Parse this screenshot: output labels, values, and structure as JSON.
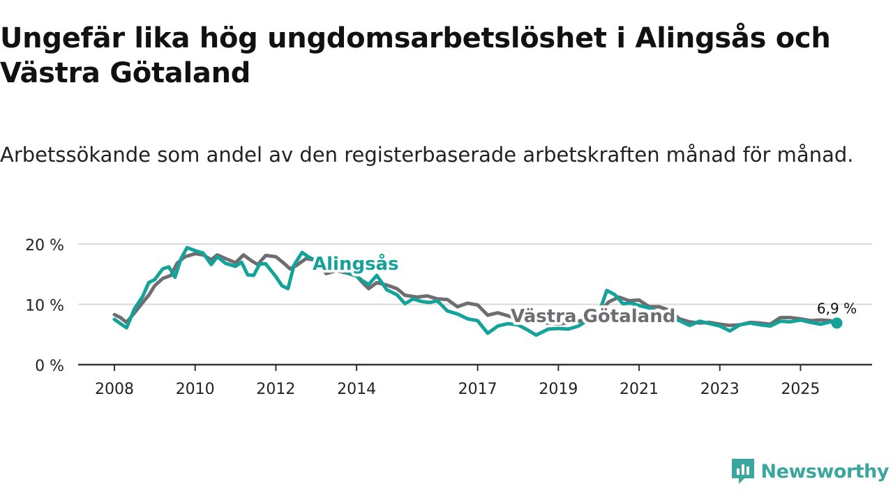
{
  "title": "Ungefär lika hög ungdomsarbetslöshet i Alingsås och Västra Götaland",
  "subtitle": "Arbetssökande som andel av den registerbaserade arbetskraften månad för månad.",
  "brand": {
    "name": "Newsworthy"
  },
  "colors": {
    "alingsas": "#14a39a",
    "vastra": "#6e6e72",
    "grid": "#d9d9d9",
    "axis": "#333333",
    "text": "#222222"
  },
  "chart_data": {
    "type": "line",
    "title": "Ungefär lika hög ungdomsarbetslöshet i Alingsås och Västra Götaland",
    "xlabel": "",
    "ylabel": "",
    "ylim": [
      0,
      20
    ],
    "xlim": [
      2008,
      2026.3
    ],
    "grid": true,
    "y_ticks": [
      {
        "value": 0,
        "label": "0 %"
      },
      {
        "value": 10,
        "label": "10 %"
      },
      {
        "value": 20,
        "label": "20 %"
      }
    ],
    "x_ticks": [
      {
        "value": 2008,
        "label": "2008"
      },
      {
        "value": 2010,
        "label": "2010"
      },
      {
        "value": 2012,
        "label": "2012"
      },
      {
        "value": 2014,
        "label": "2014"
      },
      {
        "value": 2017,
        "label": "2017"
      },
      {
        "value": 2019,
        "label": "2019"
      },
      {
        "value": 2021,
        "label": "2021"
      },
      {
        "value": 2023,
        "label": "2023"
      },
      {
        "value": 2025,
        "label": "2025"
      }
    ],
    "series": [
      {
        "name": "Västra Götaland",
        "label": "Västra Götaland",
        "color": "#6e6e72",
        "points": [
          [
            2008.0,
            8.3
          ],
          [
            2008.15,
            7.8
          ],
          [
            2008.3,
            7.0
          ],
          [
            2008.5,
            8.6
          ],
          [
            2008.7,
            10.3
          ],
          [
            2008.85,
            11.5
          ],
          [
            2009.0,
            13.1
          ],
          [
            2009.2,
            14.3
          ],
          [
            2009.4,
            14.8
          ],
          [
            2009.55,
            16.8
          ],
          [
            2009.75,
            17.9
          ],
          [
            2010.0,
            18.4
          ],
          [
            2010.2,
            18.2
          ],
          [
            2010.4,
            17.4
          ],
          [
            2010.55,
            18.2
          ],
          [
            2010.75,
            17.6
          ],
          [
            2011.0,
            16.9
          ],
          [
            2011.2,
            18.2
          ],
          [
            2011.4,
            17.2
          ],
          [
            2011.55,
            16.6
          ],
          [
            2011.75,
            18.1
          ],
          [
            2012.0,
            17.9
          ],
          [
            2012.2,
            16.8
          ],
          [
            2012.35,
            15.9
          ],
          [
            2012.5,
            16.4
          ],
          [
            2012.75,
            17.6
          ],
          [
            2013.0,
            17.3
          ],
          [
            2013.25,
            15.1
          ],
          [
            2013.5,
            15.6
          ],
          [
            2013.75,
            15.2
          ],
          [
            2014.0,
            14.7
          ],
          [
            2014.15,
            13.6
          ],
          [
            2014.3,
            12.6
          ],
          [
            2014.5,
            13.6
          ],
          [
            2014.75,
            13.2
          ],
          [
            2015.0,
            12.6
          ],
          [
            2015.2,
            11.5
          ],
          [
            2015.5,
            11.2
          ],
          [
            2015.75,
            11.4
          ],
          [
            2016.0,
            10.9
          ],
          [
            2016.25,
            10.8
          ],
          [
            2016.5,
            9.6
          ],
          [
            2016.75,
            10.2
          ],
          [
            2017.0,
            9.9
          ],
          [
            2017.25,
            8.2
          ],
          [
            2017.5,
            8.6
          ],
          [
            2017.75,
            8.1
          ],
          [
            2018.0,
            7.6
          ],
          [
            2018.25,
            7.2
          ],
          [
            2018.5,
            7.0
          ],
          [
            2018.75,
            6.9
          ],
          [
            2019.0,
            6.8
          ],
          [
            2019.25,
            6.9
          ],
          [
            2019.5,
            7.2
          ],
          [
            2019.75,
            7.6
          ],
          [
            2020.0,
            8.6
          ],
          [
            2020.25,
            10.4
          ],
          [
            2020.5,
            11.2
          ],
          [
            2020.75,
            10.6
          ],
          [
            2021.0,
            10.7
          ],
          [
            2021.25,
            9.6
          ],
          [
            2021.5,
            9.6
          ],
          [
            2021.75,
            9.0
          ],
          [
            2022.0,
            7.6
          ],
          [
            2022.25,
            7.1
          ],
          [
            2022.5,
            6.9
          ],
          [
            2022.75,
            7.0
          ],
          [
            2023.0,
            6.7
          ],
          [
            2023.25,
            6.5
          ],
          [
            2023.5,
            6.6
          ],
          [
            2023.75,
            7.0
          ],
          [
            2024.0,
            6.9
          ],
          [
            2024.25,
            6.7
          ],
          [
            2024.5,
            7.8
          ],
          [
            2024.75,
            7.8
          ],
          [
            2025.0,
            7.6
          ],
          [
            2025.25,
            7.3
          ],
          [
            2025.5,
            7.4
          ],
          [
            2025.75,
            7.3
          ]
        ]
      },
      {
        "name": "Alingsås",
        "label": "Alingsås",
        "color": "#14a39a",
        "end_label": "6,9 %",
        "end_value": 6.9,
        "points": [
          [
            2008.0,
            7.5
          ],
          [
            2008.15,
            6.8
          ],
          [
            2008.3,
            6.1
          ],
          [
            2008.5,
            9.3
          ],
          [
            2008.7,
            11.3
          ],
          [
            2008.85,
            13.6
          ],
          [
            2009.0,
            14.1
          ],
          [
            2009.2,
            15.9
          ],
          [
            2009.35,
            16.2
          ],
          [
            2009.5,
            14.5
          ],
          [
            2009.65,
            17.6
          ],
          [
            2009.8,
            19.4
          ],
          [
            2010.0,
            18.9
          ],
          [
            2010.2,
            18.5
          ],
          [
            2010.4,
            16.6
          ],
          [
            2010.55,
            17.9
          ],
          [
            2010.75,
            16.8
          ],
          [
            2011.0,
            16.3
          ],
          [
            2011.15,
            17.0
          ],
          [
            2011.3,
            14.9
          ],
          [
            2011.45,
            14.8
          ],
          [
            2011.6,
            16.7
          ],
          [
            2011.75,
            16.7
          ],
          [
            2012.0,
            14.6
          ],
          [
            2012.15,
            13.1
          ],
          [
            2012.3,
            12.6
          ],
          [
            2012.45,
            16.5
          ],
          [
            2012.65,
            18.6
          ],
          [
            2012.8,
            17.9
          ],
          [
            2013.0,
            17.2
          ],
          [
            2013.25,
            15.8
          ],
          [
            2013.5,
            16.6
          ],
          [
            2013.75,
            15.3
          ],
          [
            2014.0,
            14.7
          ],
          [
            2014.15,
            13.9
          ],
          [
            2014.3,
            13.3
          ],
          [
            2014.5,
            14.8
          ],
          [
            2014.75,
            12.4
          ],
          [
            2015.0,
            11.6
          ],
          [
            2015.2,
            10.1
          ],
          [
            2015.4,
            10.9
          ],
          [
            2015.6,
            10.5
          ],
          [
            2015.8,
            10.3
          ],
          [
            2016.0,
            10.6
          ],
          [
            2016.25,
            8.9
          ],
          [
            2016.5,
            8.4
          ],
          [
            2016.75,
            7.6
          ],
          [
            2017.0,
            7.3
          ],
          [
            2017.25,
            5.2
          ],
          [
            2017.5,
            6.4
          ],
          [
            2017.75,
            6.8
          ],
          [
            2018.0,
            6.6
          ],
          [
            2018.25,
            5.7
          ],
          [
            2018.45,
            4.9
          ],
          [
            2018.75,
            5.9
          ],
          [
            2019.0,
            6.0
          ],
          [
            2019.25,
            5.9
          ],
          [
            2019.5,
            6.4
          ],
          [
            2019.75,
            7.5
          ],
          [
            2020.0,
            8.5
          ],
          [
            2020.2,
            12.3
          ],
          [
            2020.4,
            11.6
          ],
          [
            2020.6,
            10.1
          ],
          [
            2020.8,
            10.2
          ],
          [
            2021.0,
            9.8
          ],
          [
            2021.25,
            9.4
          ],
          [
            2021.5,
            8.6
          ],
          [
            2021.75,
            7.8
          ],
          [
            2022.0,
            7.3
          ],
          [
            2022.25,
            6.5
          ],
          [
            2022.5,
            7.2
          ],
          [
            2022.75,
            6.8
          ],
          [
            2023.0,
            6.4
          ],
          [
            2023.25,
            5.6
          ],
          [
            2023.5,
            6.6
          ],
          [
            2023.75,
            6.9
          ],
          [
            2024.0,
            6.6
          ],
          [
            2024.25,
            6.4
          ],
          [
            2024.5,
            7.2
          ],
          [
            2024.75,
            7.1
          ],
          [
            2025.0,
            7.4
          ],
          [
            2025.25,
            7.0
          ],
          [
            2025.5,
            6.7
          ],
          [
            2025.75,
            7.1
          ],
          [
            2025.9,
            6.9
          ]
        ]
      }
    ]
  }
}
